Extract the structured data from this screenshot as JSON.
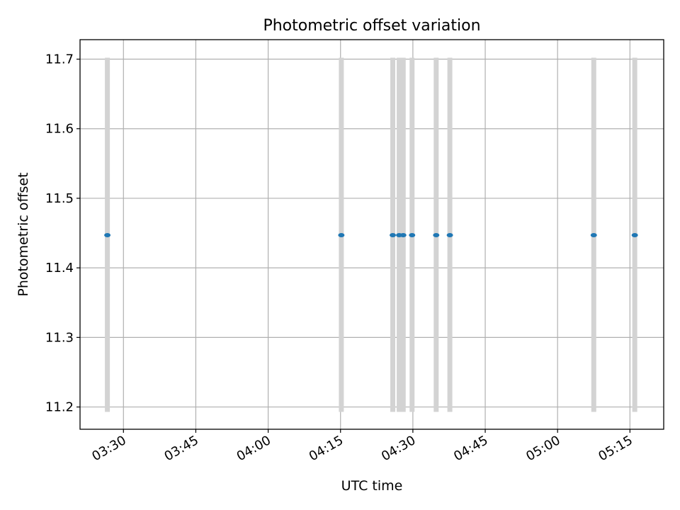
{
  "chart_data": {
    "type": "scatter",
    "title": "Photometric offset variation",
    "xlabel": "UTC time",
    "ylabel": "Photometric offset",
    "x_axis_type": "time",
    "xlim": [
      "03:21:00",
      "05:22:00"
    ],
    "ylim": [
      11.168,
      11.728
    ],
    "x_ticks": [
      "03:30",
      "03:45",
      "04:00",
      "04:15",
      "04:30",
      "04:45",
      "05:00",
      "05:15"
    ],
    "y_ticks": [
      "11.2",
      "11.3",
      "11.4",
      "11.5",
      "11.6",
      "11.7"
    ],
    "grid": true,
    "points": [
      {
        "x": "03:26:40",
        "y": 11.447,
        "yerr_low": 11.193,
        "yerr_high": 11.702
      },
      {
        "x": "04:15:10",
        "y": 11.447,
        "yerr_low": 11.193,
        "yerr_high": 11.702
      },
      {
        "x": "04:25:50",
        "y": 11.447,
        "yerr_low": 11.193,
        "yerr_high": 11.702
      },
      {
        "x": "04:27:10",
        "y": 11.447,
        "yerr_low": 11.193,
        "yerr_high": 11.702
      },
      {
        "x": "04:28:00",
        "y": 11.447,
        "yerr_low": 11.193,
        "yerr_high": 11.702
      },
      {
        "x": "04:29:50",
        "y": 11.447,
        "yerr_low": 11.193,
        "yerr_high": 11.702
      },
      {
        "x": "04:34:50",
        "y": 11.447,
        "yerr_low": 11.193,
        "yerr_high": 11.702
      },
      {
        "x": "04:37:40",
        "y": 11.447,
        "yerr_low": 11.193,
        "yerr_high": 11.702
      },
      {
        "x": "05:07:30",
        "y": 11.447,
        "yerr_low": 11.193,
        "yerr_high": 11.702
      },
      {
        "x": "05:16:00",
        "y": 11.447,
        "yerr_low": 11.193,
        "yerr_high": 11.702
      }
    ],
    "colors": {
      "marker": "#1f77b4",
      "errorbar": "#d3d3d3",
      "grid": "#b0b0b0",
      "axes": "#000000"
    }
  }
}
